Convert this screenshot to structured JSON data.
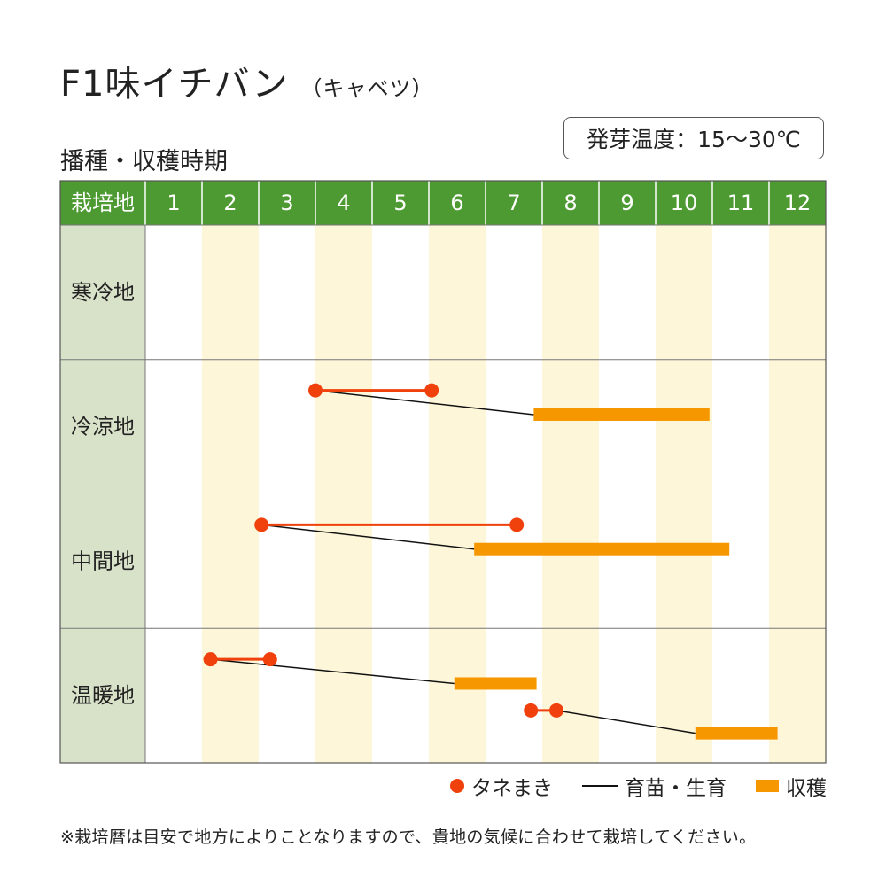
{
  "header": {
    "title": "F1味イチバン",
    "title_sub": "（キャベツ）",
    "subtitle": "播種・収穫時期",
    "temperature": "発芽温度：15〜30℃"
  },
  "legend": {
    "sowing": "タネまき",
    "growing": "育苗・生育",
    "harvest": "収穫"
  },
  "note": "※栽培暦は目安で地方によりことなりますので、貴地の気候に合わせて栽培してください。",
  "colors": {
    "header_green": "#4d9a32",
    "region_col": "#d8e2c9",
    "stripe": "#fdf6d8",
    "sowing": "#f0410c",
    "harvest": "#f79700",
    "growing_line": "#111111"
  },
  "chart_data": {
    "type": "table",
    "corner_label": "栽培地",
    "months": [
      "1",
      "2",
      "3",
      "4",
      "5",
      "6",
      "7",
      "8",
      "9",
      "10",
      "11",
      "12"
    ],
    "x_unit": "month",
    "regions": [
      {
        "name": "寒冷地",
        "schedules": []
      },
      {
        "name": "冷涼地",
        "schedules": [
          {
            "sowing": [
              4.0,
              6.05
            ],
            "growing": [
              4.0,
              7.85
            ],
            "harvest": [
              7.85,
              10.95
            ]
          }
        ]
      },
      {
        "name": "中間地",
        "schedules": [
          {
            "sowing": [
              3.05,
              7.55
            ],
            "growing": [
              3.05,
              6.8
            ],
            "harvest": [
              6.8,
              11.3
            ]
          }
        ]
      },
      {
        "name": "温暖地",
        "schedules": [
          {
            "sowing": [
              2.15,
              3.2
            ],
            "growing": [
              2.15,
              6.45
            ],
            "harvest": [
              6.45,
              7.9
            ]
          },
          {
            "sowing": [
              7.8,
              8.25
            ],
            "growing": [
              8.25,
              10.7
            ],
            "harvest": [
              10.7,
              12.15
            ]
          }
        ]
      }
    ]
  }
}
